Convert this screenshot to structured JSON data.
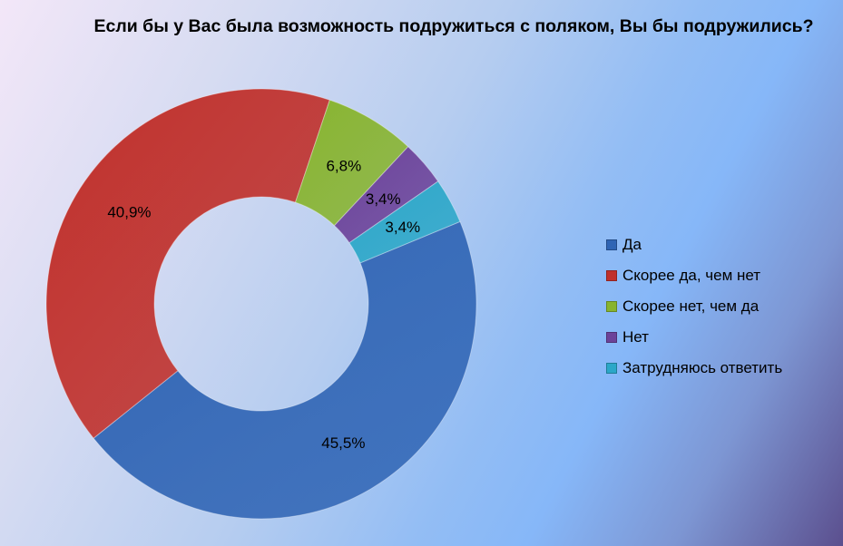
{
  "chart_data": {
    "type": "pie",
    "title": "Если бы у Вас была возможность подружиться с поляком, Вы бы подружились?",
    "categories": [
      "Да",
      "Скорее да, чем нет",
      "Скорее нет, чем да",
      "Нет",
      "Затрудняюсь ответить"
    ],
    "values": [
      45.5,
      40.9,
      6.8,
      3.4,
      3.4
    ],
    "labels": [
      "45,5%",
      "40,9%",
      "6,8%",
      "3,4%",
      "3,4%"
    ],
    "colors": [
      "#2f64b4",
      "#c0302b",
      "#88b42f",
      "#6c4299",
      "#2ba7c8"
    ],
    "legend_position": "right"
  },
  "legend": {
    "items": [
      {
        "label": "Да",
        "color": "#2f64b4"
      },
      {
        "label": "Скорее да, чем нет",
        "color": "#c0302b"
      },
      {
        "label": "Скорее нет, чем да",
        "color": "#88b42f"
      },
      {
        "label": "Нет",
        "color": "#6c4299"
      },
      {
        "label": "Затрудняюсь ответить",
        "color": "#2ba7c8"
      }
    ]
  }
}
